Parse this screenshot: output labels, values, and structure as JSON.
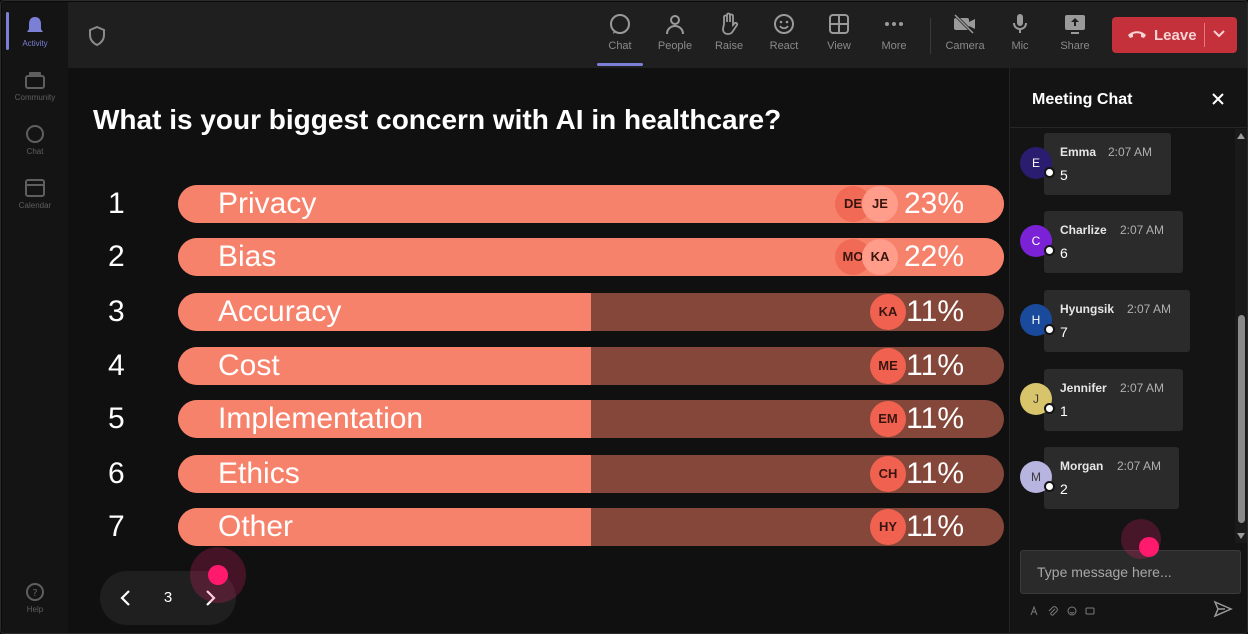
{
  "rail": {
    "items": [
      {
        "label": "Activity",
        "icon": "bell-icon",
        "active": true
      },
      {
        "label": "Community",
        "icon": "community-icon",
        "active": false
      },
      {
        "label": "Chat",
        "icon": "chat-icon",
        "active": false
      },
      {
        "label": "Calendar",
        "icon": "calendar-icon",
        "active": false
      }
    ],
    "help": {
      "label": "Help",
      "icon": "help-icon"
    }
  },
  "toolbar": {
    "chat_label": "Chat",
    "people_label": "People",
    "raise_label": "Raise",
    "react_label": "React",
    "view_label": "View",
    "more_label": "More",
    "camera_label": "Camera",
    "mic_label": "Mic",
    "share_label": "Share",
    "leave_label": "Leave",
    "accent": "#7b7fd6",
    "leave_color": "#c4313a"
  },
  "poll": {
    "question": "What is your biggest concern with AI in healthcare?",
    "fill_color": "#f7826b",
    "track_color": "#84473a",
    "options": [
      {
        "num": "1",
        "label": "Privacy",
        "percent": "23%",
        "fill_fraction": 1.0,
        "avatars": [
          "DE",
          "JE"
        ]
      },
      {
        "num": "2",
        "label": "Bias",
        "percent": "22%",
        "fill_fraction": 1.0,
        "avatars": [
          "MO",
          "KA"
        ]
      },
      {
        "num": "3",
        "label": "Accuracy",
        "percent": "11%",
        "fill_fraction": 0.5,
        "avatars": [
          "KA"
        ]
      },
      {
        "num": "4",
        "label": "Cost",
        "percent": "11%",
        "fill_fraction": 0.5,
        "avatars": [
          "ME"
        ]
      },
      {
        "num": "5",
        "label": "Implementation",
        "percent": "11%",
        "fill_fraction": 0.5,
        "avatars": [
          "EM"
        ]
      },
      {
        "num": "6",
        "label": "Ethics",
        "percent": "11%",
        "fill_fraction": 0.5,
        "avatars": [
          "CH"
        ]
      },
      {
        "num": "7",
        "label": "Other",
        "percent": "11%",
        "fill_fraction": 0.5,
        "avatars": [
          "HY"
        ]
      }
    ],
    "page": "3"
  },
  "chat": {
    "title": "Meeting Chat",
    "placeholder": "Type message here...",
    "messages": [
      {
        "initial": "E",
        "name": "Emma",
        "time": "2:07 AM",
        "text": "5",
        "color": "#2a1c6e"
      },
      {
        "initial": "C",
        "name": "Charlize",
        "time": "2:07 AM",
        "text": "6",
        "color": "#7b22d6"
      },
      {
        "initial": "H",
        "name": "Hyungsik",
        "time": "2:07 AM",
        "text": "7",
        "color": "#1a4a9c"
      },
      {
        "initial": "J",
        "name": "Jennifer",
        "time": "2:07 AM",
        "text": "1",
        "color": "#d8c46a"
      },
      {
        "initial": "M",
        "name": "Morgan",
        "time": "2:07 AM",
        "text": "2",
        "color": "#b8b4e0"
      }
    ]
  }
}
